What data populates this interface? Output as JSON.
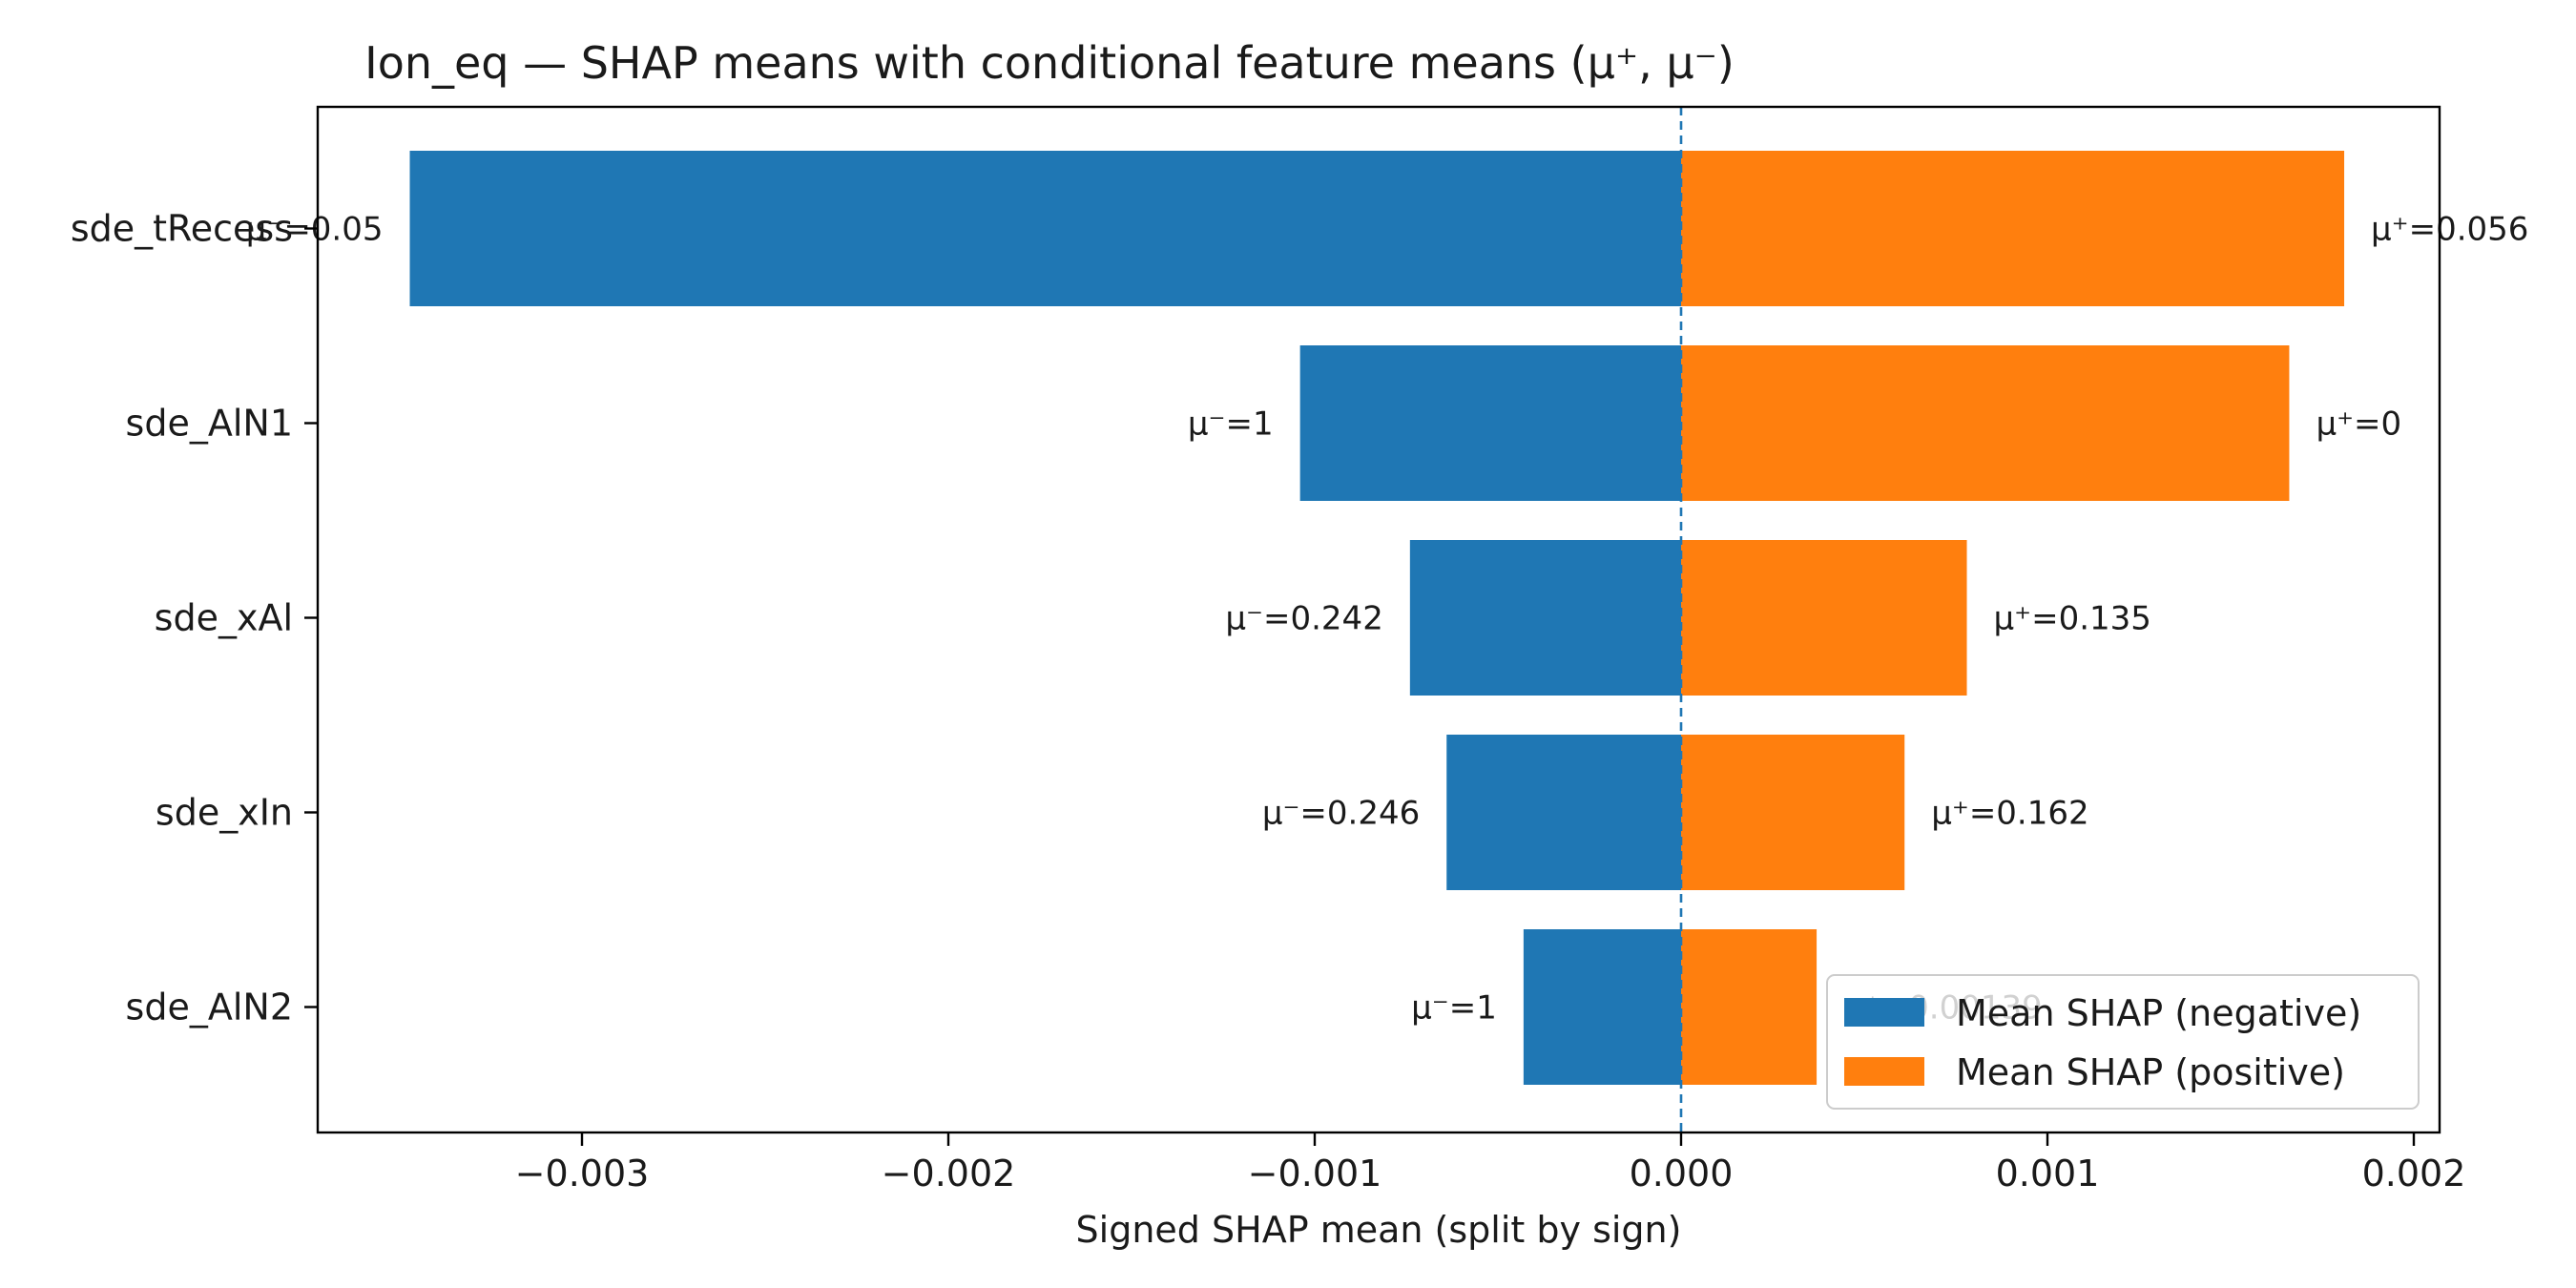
{
  "chart_data": {
    "type": "bar",
    "orientation": "horizontal",
    "title": "Ion_eq — SHAP means with conditional feature means (μ⁺, μ⁻)",
    "xlabel": "Signed SHAP mean (split by sign)",
    "ylabel": "",
    "xlim": [
      -0.00375,
      0.00208
    ],
    "xticks": [
      -0.003,
      -0.002,
      -0.001,
      0.0,
      0.001,
      0.002
    ],
    "xtick_labels": [
      "−0.003",
      "−0.002",
      "−0.001",
      "0.000",
      "0.001",
      "0.002"
    ],
    "zero_line": "dashed",
    "grid": false,
    "legend_position": "lower-right",
    "categories": [
      "sde_tRecess",
      "sde_AlN1",
      "sde_xAl",
      "sde_xIn",
      "sde_AlN2"
    ],
    "series": [
      {
        "name": "Mean SHAP (negative)",
        "color": "#1f77b4",
        "values": [
          -0.00347,
          -0.00104,
          -0.00074,
          -0.00064,
          -0.00043
        ],
        "labels": [
          "μ⁻=0.05",
          "μ⁻=1",
          "μ⁻=0.242",
          "μ⁻=0.246",
          "μ⁻=1"
        ]
      },
      {
        "name": "Mean SHAP (positive)",
        "color": "#ff7f0e",
        "values": [
          0.00181,
          0.00166,
          0.00078,
          0.00061,
          0.00037
        ],
        "labels": [
          "μ⁺=0.056",
          "μ⁺=0",
          "μ⁺=0.135",
          "μ⁺=0.162",
          "μ⁺=0.00139"
        ]
      }
    ]
  }
}
